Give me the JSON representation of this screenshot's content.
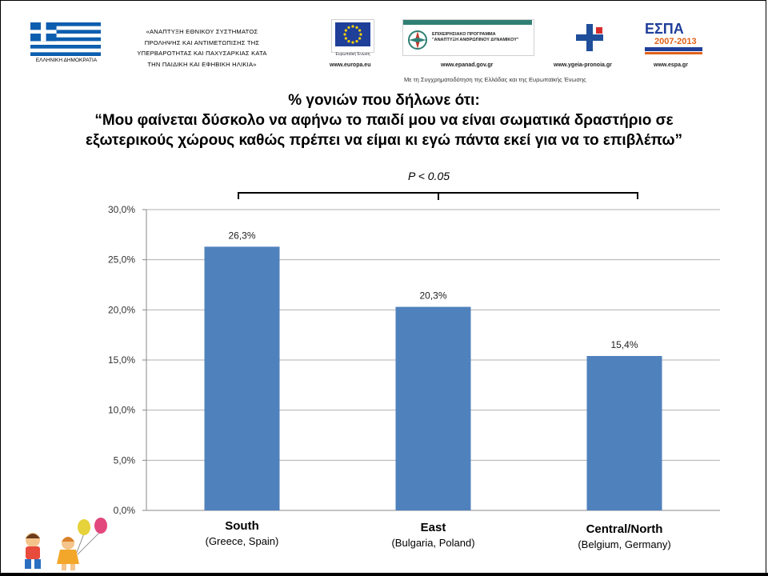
{
  "header": {
    "flag_caption": "ΕΛΛΗΝΙΚΗ ΔΗΜΟΚΡΑΤΙΑ",
    "program_lines": [
      "«ΑΝΑΠΤΥΞΗ ΕΘΝΙΚΟΥ ΣΥΣΤΗΜΑΤΟΣ",
      "ΠΡΟΛΗΨΗΣ ΚΑΙ ΑΝΤΙΜΕΤΩΠΙΣΗΣ ΤΗΣ",
      "ΥΠΕΡΒΑΡΟΤΗΤΑΣ ΚΑΙ ΠΑΧΥΣΑΡΚΙΑΣ ΚΑΤΑ",
      "ΤΗΝ ΠΑΙΔΙΚΗ ΚΑΙ ΕΦΗΒΙΚΗ ΗΛΙΚΙΑ»"
    ],
    "eu_caption": "Ευρωπαϊκή Ένωση",
    "ep_title_1": "ΕΠΙΧΕΙΡΗΣΙΑΚΟ ΠΡΟΓΡΑΜΜΑ",
    "ep_title_2": "\"ΑΝΑΠΤΥΞΗ ΑΝΘΡΩΠΙΝΟΥ ΔΥΝΑΜΙΚΟΥ\"",
    "espa_text": "ΕΣΠΑ",
    "espa_years": "2007-2013",
    "urls": [
      "www.europa.eu",
      "www.epanad.gov.gr",
      "www.ygeia-pronoia.gr",
      "www.espa.gr"
    ],
    "cofinance": "Με τη Συγχρηματοδότηση της Ελλάδας και της Ευρωπαϊκής Ένωσης"
  },
  "title": {
    "line1": "% γονιών που δήλωνε ότι:",
    "line2": "“Μου φαίνεται δύσκολο να αφήνω το παιδί μου να είναι σωματικά δραστήριο  σε",
    "line3": "εξωτερικούς χώρους καθώς πρέπει να είμαι κι εγώ πάντα εκεί για να το επιβλέπω”"
  },
  "significance": "P < 0.05",
  "colors": {
    "bar": "#4f81bd",
    "grid": "#b0b0b0",
    "axis": "#888888"
  },
  "chart_data": {
    "type": "bar",
    "categories": [
      "South",
      "East",
      "Central/North"
    ],
    "category_subtitles": [
      "(Greece, Spain)",
      "(Bulgaria, Poland)",
      "(Belgium, Germany)"
    ],
    "values": [
      26.3,
      20.3,
      15.4
    ],
    "value_labels": [
      "26,3%",
      "20,3%",
      "15,4%"
    ],
    "yticks": [
      "0,0%",
      "5,0%",
      "10,0%",
      "15,0%",
      "20,0%",
      "25,0%",
      "30,0%"
    ],
    "ylim": [
      0,
      30
    ],
    "grid": true
  }
}
